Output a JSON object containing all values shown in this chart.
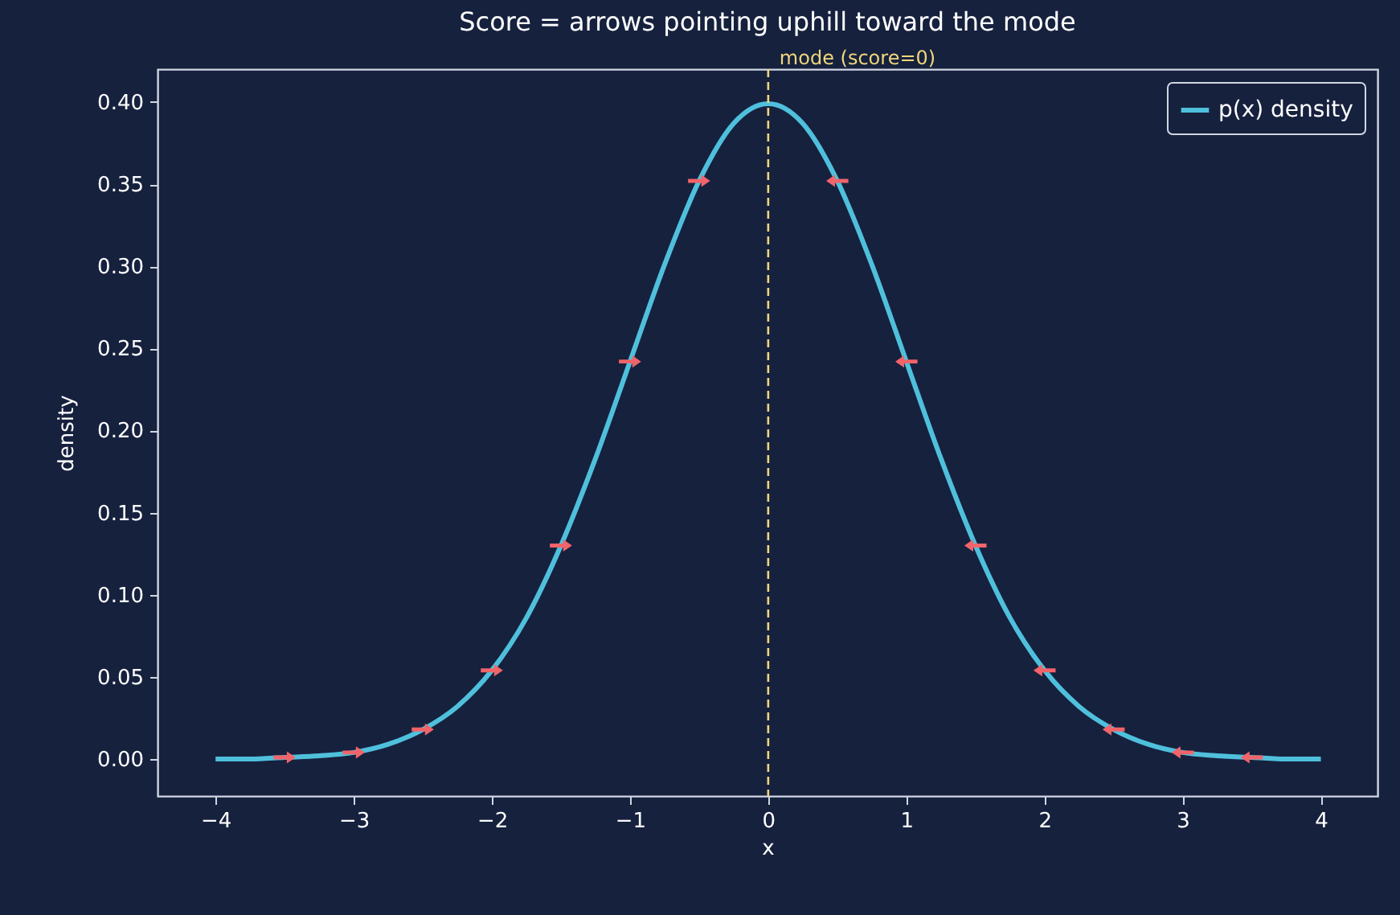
{
  "chart_data": {
    "type": "line",
    "title": "Score = arrows pointing uphill toward the mode",
    "xlabel": "x",
    "ylabel": "density",
    "xlim": [
      -4.42,
      4.41
    ],
    "ylim": [
      -0.0225,
      0.42
    ],
    "xticks": [
      {
        "value": -4,
        "label": "−4"
      },
      {
        "value": -3,
        "label": "−3"
      },
      {
        "value": -2,
        "label": "−2"
      },
      {
        "value": -1,
        "label": "−1"
      },
      0,
      1,
      2,
      3,
      4
    ],
    "yticks": [
      {
        "value": 0,
        "label": "0.00"
      },
      {
        "value": 0.05,
        "label": "0.05"
      },
      {
        "value": 0.1,
        "label": "0.10"
      },
      {
        "value": 0.15,
        "label": "0.15"
      },
      {
        "value": 0.2,
        "label": "0.20"
      },
      {
        "value": 0.25,
        "label": "0.25"
      },
      {
        "value": 0.3,
        "label": "0.30"
      },
      {
        "value": 0.35,
        "label": "0.35"
      },
      {
        "value": 0.4,
        "label": "0.40"
      }
    ],
    "grid": false,
    "legend": "top right",
    "series": [
      {
        "name": "p(x) density",
        "color": "#4fc0dc",
        "line_style": "solid",
        "x": [
          -4,
          -3.75,
          -3.5,
          -3.25,
          -3,
          -2.75,
          -2.5,
          -2.25,
          -2,
          -1.75,
          -1.5,
          -1.25,
          -1,
          -0.75,
          -0.5,
          -0.25,
          0,
          0.25,
          0.5,
          0.75,
          1,
          1.25,
          1.5,
          1.75,
          2,
          2.25,
          2.5,
          2.75,
          3,
          3.25,
          3.5,
          3.75,
          4
        ],
        "values": [
          0.0,
          0.0,
          0.001,
          0.002,
          0.004,
          0.009,
          0.018,
          0.032,
          0.054,
          0.086,
          0.13,
          0.183,
          0.242,
          0.301,
          0.352,
          0.387,
          0.399,
          0.387,
          0.352,
          0.301,
          0.242,
          0.183,
          0.13,
          0.086,
          0.054,
          0.032,
          0.018,
          0.009,
          0.004,
          0.002,
          0.001,
          0.0,
          0.0
        ]
      },
      {
        "type": "scatter",
        "color": "#f0646a",
        "marker": "triangle",
        "x": [
          -3.5,
          -3,
          -2.5,
          -2,
          -1.5,
          -1,
          -0.5,
          0.5,
          1,
          1.5,
          2,
          2.5,
          3,
          3.5
        ],
        "values": [
          0.001,
          0.004,
          0.018,
          0.054,
          0.13,
          0.242,
          0.352,
          0.352,
          0.242,
          0.13,
          0.054,
          0.018,
          0.004,
          0.001
        ]
      }
    ],
    "ref_lines": [
      {
        "axis": "x",
        "value": 0,
        "label": "mode (score=0)",
        "color": "#f0d67a",
        "line_style": "dashed"
      }
    ]
  }
}
